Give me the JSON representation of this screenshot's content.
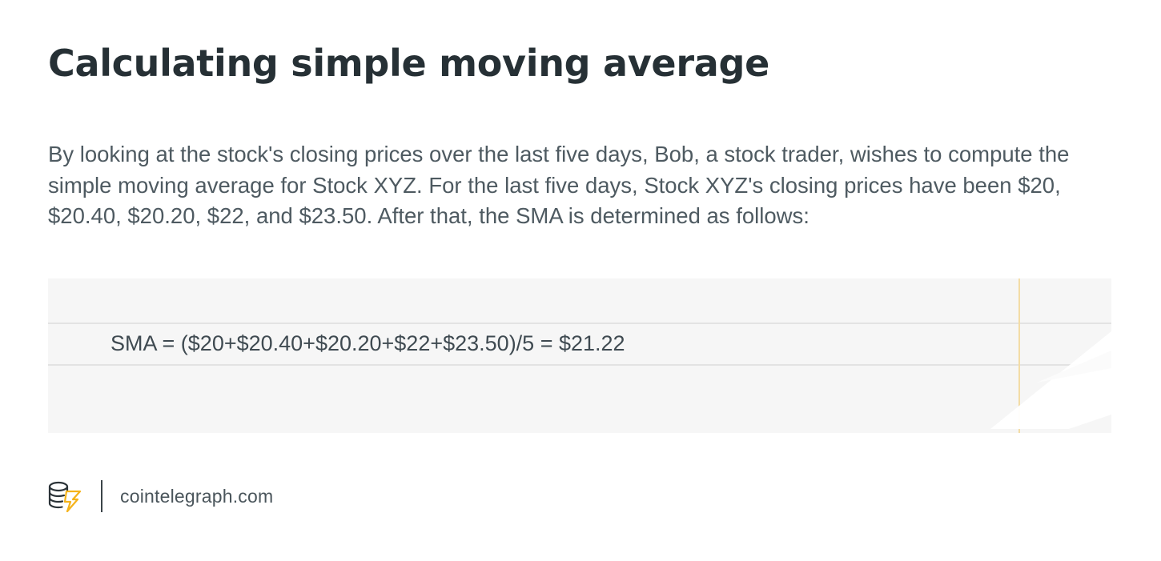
{
  "title": "Calculating simple moving average",
  "intro": "By looking at the stock's closing prices over the last five days, Bob, a stock trader, wishes to compute the simple moving average for Stock XYZ. For the last five days, Stock XYZ's closing prices have been $20, $20.40, $20.20, $22, and $23.50. After that, the SMA is determined as follows:",
  "formula": "SMA = ($20+$20.40+$20.20+$22+$23.50)/5 = $21.22",
  "footer": {
    "logo_icon": "cointelegraph-coins-icon",
    "site": "cointelegraph.com"
  },
  "colors": {
    "title": "#263035",
    "body_text": "#4e5a61",
    "panel_background": "#f6f6f6",
    "margin_line": "#f3dca6",
    "logo_accent": "#f5b31a"
  }
}
